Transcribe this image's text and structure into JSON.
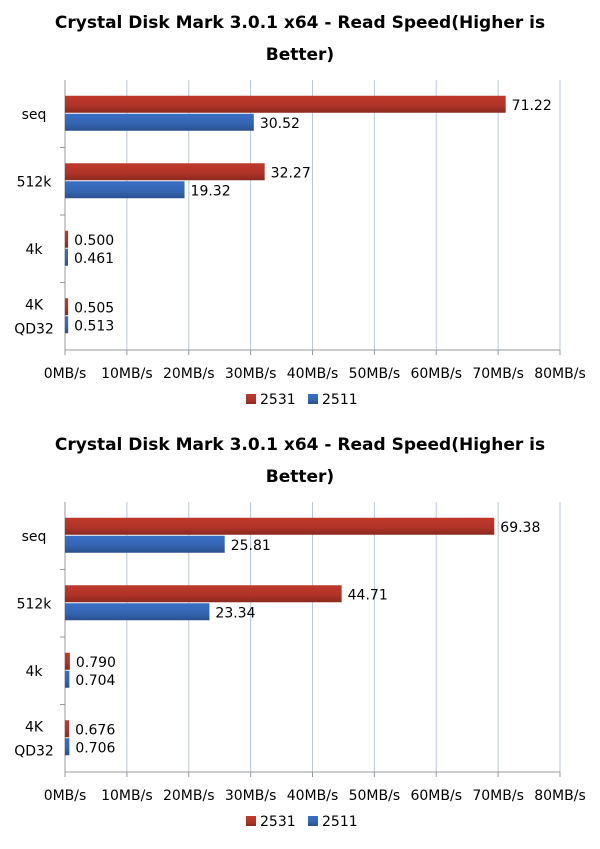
{
  "chart_data": [
    {
      "type": "bar",
      "orientation": "horizontal",
      "title": "Crystal Disk Mark 3.0.1 x64 - Read Speed(Higher is Better)",
      "title_lines": [
        "Crystal Disk Mark 3.0.1 x64 - Read Speed(Higher is",
        "Better)"
      ],
      "categories": [
        "seq",
        "512k",
        "4k",
        "4K QD32"
      ],
      "category_lines": [
        [
          "seq"
        ],
        [
          "512k"
        ],
        [
          "4k"
        ],
        [
          "4K",
          "QD32"
        ]
      ],
      "series": [
        {
          "name": "2531",
          "values": [
            71.22,
            32.27,
            0.5,
            0.505
          ],
          "labels": [
            "71.22",
            "32.27",
            "0.500",
            "0.505"
          ],
          "color": "#c0392b"
        },
        {
          "name": "2511",
          "values": [
            30.52,
            19.32,
            0.461,
            0.513
          ],
          "labels": [
            "30.52",
            "19.32",
            "0.461",
            "0.513"
          ],
          "color": "#3a6fc4"
        }
      ],
      "xlim": [
        0,
        80
      ],
      "ticks": [
        "0MB/s",
        "10MB/s",
        "20MB/s",
        "30MB/s",
        "40MB/s",
        "50MB/s",
        "60MB/s",
        "70MB/s",
        "80MB/s"
      ],
      "grid": true,
      "legend": "bottom"
    },
    {
      "type": "bar",
      "orientation": "horizontal",
      "title": "Crystal Disk Mark 3.0.1 x64 - Read Speed(Higher is Better)",
      "title_lines": [
        "Crystal Disk Mark 3.0.1 x64 - Read Speed(Higher is",
        "Better)"
      ],
      "categories": [
        "seq",
        "512k",
        "4k",
        "4K QD32"
      ],
      "category_lines": [
        [
          "seq"
        ],
        [
          "512k"
        ],
        [
          "4k"
        ],
        [
          "4K",
          "QD32"
        ]
      ],
      "series": [
        {
          "name": "2531",
          "values": [
            69.38,
            44.71,
            0.79,
            0.676
          ],
          "labels": [
            "69.38",
            "44.71",
            "0.790",
            "0.676"
          ],
          "color": "#c0392b"
        },
        {
          "name": "2511",
          "values": [
            25.81,
            23.34,
            0.704,
            0.706
          ],
          "labels": [
            "25.81",
            "23.34",
            "0.704",
            "0.706"
          ],
          "color": "#3a6fc4"
        }
      ],
      "xlim": [
        0,
        80
      ],
      "ticks": [
        "0MB/s",
        "10MB/s",
        "20MB/s",
        "30MB/s",
        "40MB/s",
        "50MB/s",
        "60MB/s",
        "70MB/s",
        "80MB/s"
      ],
      "grid": true,
      "legend": "bottom"
    }
  ]
}
